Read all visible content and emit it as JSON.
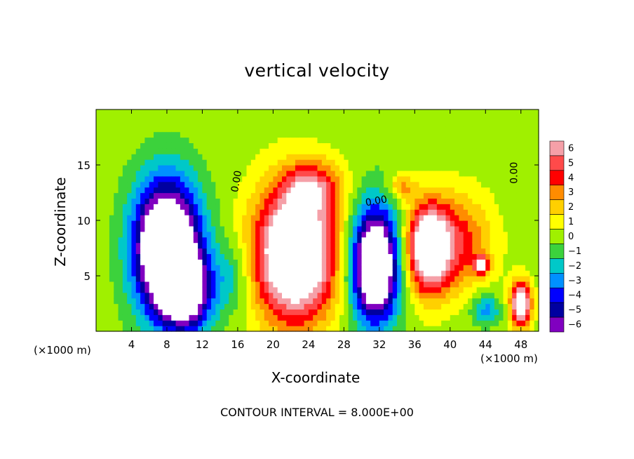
{
  "chart_data": {
    "type": "heatmap",
    "title": "vertical velocity",
    "xlabel": "X-coordinate",
    "ylabel": "Z-coordinate",
    "x_unit_label": "(×1000 m)",
    "x_unit_label_right": "(×1000 m)",
    "footer": "CONTOUR INTERVAL = 8.000E+00",
    "xlim": [
      0,
      50
    ],
    "ylim": [
      0,
      20
    ],
    "x_ticks": [
      4,
      8,
      12,
      16,
      20,
      24,
      28,
      32,
      36,
      40,
      44,
      48
    ],
    "x_tick_labels": [
      "4",
      "8",
      "12",
      "16",
      "20",
      "24",
      "28",
      "32",
      "36",
      "40",
      "44",
      "48"
    ],
    "y_ticks": [
      5,
      10,
      15
    ],
    "y_tick_labels": [
      "5",
      "10",
      "15"
    ],
    "colorbar": {
      "levels": [
        6,
        5,
        4,
        3,
        2,
        1,
        0,
        -1,
        -2,
        -3,
        -4,
        -5,
        -6
      ],
      "labels": [
        "6",
        "5",
        "4",
        "3",
        "2",
        "1",
        "0",
        "−1",
        "−2",
        "−3",
        "−4",
        "−5",
        "−6"
      ],
      "colors": [
        "#f5a0a8",
        "#ff4a4a",
        "#ff0000",
        "#ff8c00",
        "#ffd000",
        "#ffff00",
        "#a0f000",
        "#3cd23c",
        "#00c8c8",
        "#0090ff",
        "#0000ff",
        "#0000a0",
        "#8000c0"
      ],
      "saturation_color": "#ffffff"
    },
    "contour_interval": 8.0,
    "contour_labels": [
      "0.00",
      "0.00",
      "0.00"
    ],
    "features": [
      {
        "sign": "negative",
        "x": 8.0,
        "z": 7.5,
        "sx": 2.6,
        "sz": 4.2,
        "amp": -12
      },
      {
        "sign": "negative",
        "x": 10.5,
        "z": 3.5,
        "sx": 2.0,
        "sz": 2.5,
        "amp": -6
      },
      {
        "sign": "positive",
        "x": 22.5,
        "z": 7.0,
        "sx": 3.2,
        "sz": 4.2,
        "amp": 11
      },
      {
        "sign": "positive",
        "x": 24.5,
        "z": 13.0,
        "sx": 2.2,
        "sz": 1.6,
        "amp": 4
      },
      {
        "sign": "negative",
        "x": 31.5,
        "z": 6.0,
        "sx": 1.9,
        "sz": 3.6,
        "amp": -11
      },
      {
        "sign": "positive",
        "x": 37.5,
        "z": 7.5,
        "sx": 1.7,
        "sz": 2.8,
        "amp": 9
      },
      {
        "sign": "positive",
        "x": 41.0,
        "z": 8.0,
        "sx": 2.6,
        "sz": 3.0,
        "amp": 4
      },
      {
        "sign": "positive",
        "x": 34.5,
        "z": 13.0,
        "sx": 1.0,
        "sz": 0.8,
        "amp": 3
      },
      {
        "sign": "positive",
        "x": 43.5,
        "z": 6.0,
        "sx": 0.6,
        "sz": 0.6,
        "amp": 6
      },
      {
        "sign": "positive",
        "x": 48.0,
        "z": 2.5,
        "sx": 0.8,
        "sz": 1.4,
        "amp": 9
      },
      {
        "sign": "negative",
        "x": 44.0,
        "z": 2.0,
        "sx": 1.2,
        "sz": 1.0,
        "amp": -3
      },
      {
        "sign": "negative",
        "x": 15.5,
        "z": 5.0,
        "sx": 1.5,
        "sz": 2.2,
        "amp": -2
      }
    ],
    "grid": false,
    "colorbar_placement": "right"
  }
}
